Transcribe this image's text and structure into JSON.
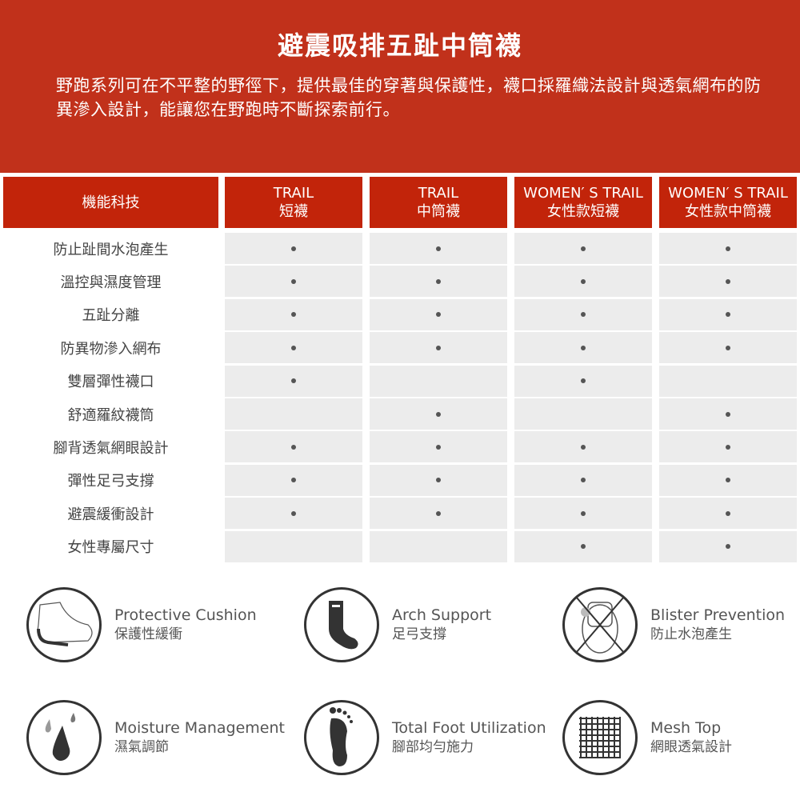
{
  "hero": {
    "title": "避震吸排五趾中筒襪",
    "description": "野跑系列可在不平整的野徑下，提供最佳的穿著與保護性，襪口採羅織法設計與透氣網布的防異滲入設計，能讓您在野跑時不斷探索前行。"
  },
  "colors": {
    "hero": "#c1311b",
    "header": "#c2240a",
    "cell": "#ececec"
  },
  "table": {
    "corner": "機能科技",
    "columns": [
      {
        "line1": "TRAIL",
        "line2": "短襪"
      },
      {
        "line1": "TRAIL",
        "line2": "中筒襪"
      },
      {
        "line1": "WOMEN′ S TRAIL",
        "line2": "女性款短襪"
      },
      {
        "line1": "WOMEN′ S TRAIL",
        "line2": "女性款中筒襪"
      }
    ],
    "rows": [
      {
        "label": "防止趾間水泡產生",
        "marks": [
          1,
          1,
          1,
          1
        ]
      },
      {
        "label": "溫控與濕度管理",
        "marks": [
          1,
          1,
          1,
          1
        ]
      },
      {
        "label": "五趾分離",
        "marks": [
          1,
          1,
          1,
          1
        ]
      },
      {
        "label": "防異物滲入網布",
        "marks": [
          1,
          1,
          1,
          1
        ]
      },
      {
        "label": "雙層彈性襪口",
        "marks": [
          1,
          0,
          1,
          0
        ]
      },
      {
        "label": "舒適羅紋襪筒",
        "marks": [
          0,
          1,
          0,
          1
        ]
      },
      {
        "label": "腳背透氣網眼設計",
        "marks": [
          1,
          1,
          1,
          1
        ]
      },
      {
        "label": "彈性足弓支撐",
        "marks": [
          1,
          1,
          1,
          1
        ]
      },
      {
        "label": "避震緩衝設計",
        "marks": [
          1,
          1,
          1,
          1
        ]
      },
      {
        "label": "女性專屬尺寸",
        "marks": [
          0,
          0,
          1,
          1
        ]
      }
    ]
  },
  "features": [
    {
      "en": "Protective Cushion",
      "zh": "保護性緩衝",
      "icon": "foot-cushion-icon"
    },
    {
      "en": "Arch Support",
      "zh": "足弓支撐",
      "icon": "sock-icon"
    },
    {
      "en": "Blister Prevention",
      "zh": "防止水泡產生",
      "icon": "no-blister-icon"
    },
    {
      "en": "Moisture Management",
      "zh": "濕氣調節",
      "icon": "water-drop-icon"
    },
    {
      "en": "Total Foot Utilization",
      "zh": "腳部均勻施力",
      "icon": "footprint-icon"
    },
    {
      "en": "Mesh Top",
      "zh": "網眼透氣設計",
      "icon": "mesh-icon"
    }
  ]
}
